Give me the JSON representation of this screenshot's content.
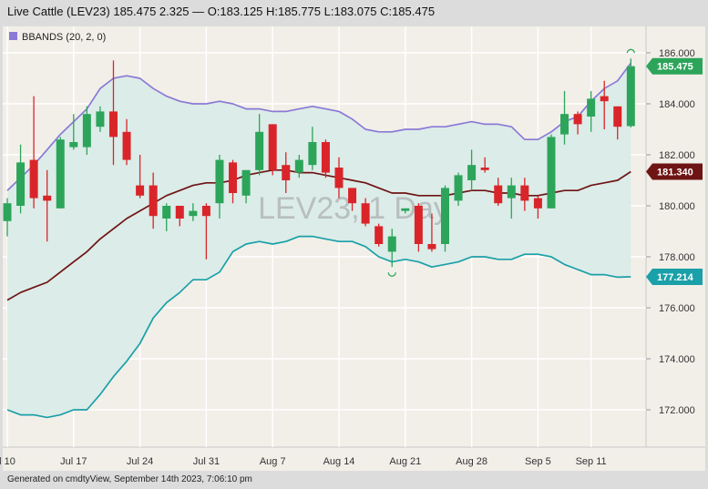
{
  "header": {
    "title": "Live Cattle (LEV23) 185.475 2.325 — O:183.125 H:185.775 L:183.075 C:185.475"
  },
  "footer": {
    "text": "Generated on cmdtyView, September 14th 2023, 7:06:10 pm"
  },
  "colors": {
    "up": "#2ca55a",
    "down": "#d9252a",
    "upper_band": "#8b79d6",
    "middle_band": "#6e1414",
    "lower_band": "#1aa0a8",
    "band_fill": "#dcece8",
    "plot_bg": "#f2efe9",
    "axis_bg": "#f2efe9",
    "grid": "#ffffff"
  },
  "chart_data": {
    "type": "candlestick",
    "symbol_watermark": "LEV23, 1 Day",
    "indicator": {
      "label": "BBANDS (20, 2, 0)",
      "upper_last": "",
      "middle_last": "181.340",
      "lower_last": "177.214"
    },
    "last_price_label": "185.475",
    "y_axis": {
      "ticks": [
        "172.000",
        "174.000",
        "176.000",
        "178.000",
        "180.000",
        "182.000",
        "184.000",
        "186.000"
      ],
      "ylim": [
        171.0,
        186.8
      ],
      "grid": true
    },
    "x_axis": {
      "ticks": [
        {
          "label": "l 10",
          "index": 0
        },
        {
          "label": "Jul 17",
          "index": 5
        },
        {
          "label": "Jul 24",
          "index": 10
        },
        {
          "label": "Jul 31",
          "index": 15
        },
        {
          "label": "Aug 7",
          "index": 20
        },
        {
          "label": "Aug 14",
          "index": 25
        },
        {
          "label": "Aug 21",
          "index": 30
        },
        {
          "label": "Aug 28",
          "index": 35
        },
        {
          "label": "Sep 5",
          "index": 40
        },
        {
          "label": "Sep 11",
          "index": 44
        }
      ]
    },
    "candles": [
      {
        "date": "Jul 10",
        "o": 179.4,
        "h": 180.3,
        "l": 178.8,
        "c": 180.1
      },
      {
        "date": "Jul 11",
        "o": 180.0,
        "h": 182.4,
        "l": 179.7,
        "c": 181.7
      },
      {
        "date": "Jul 12",
        "o": 181.8,
        "h": 184.3,
        "l": 179.9,
        "c": 180.3
      },
      {
        "date": "Jul 13",
        "o": 180.4,
        "h": 181.4,
        "l": 178.6,
        "c": 180.2
      },
      {
        "date": "Jul 14",
        "o": 179.9,
        "h": 182.7,
        "l": 179.9,
        "c": 182.6
      },
      {
        "date": "Jul 17",
        "o": 182.3,
        "h": 183.6,
        "l": 182.2,
        "c": 182.5
      },
      {
        "date": "Jul 18",
        "o": 182.3,
        "h": 183.9,
        "l": 182.0,
        "c": 183.6
      },
      {
        "date": "Jul 19",
        "o": 183.1,
        "h": 183.9,
        "l": 182.9,
        "c": 183.7
      },
      {
        "date": "Jul 20",
        "o": 183.7,
        "h": 185.7,
        "l": 181.6,
        "c": 182.7
      },
      {
        "date": "Jul 21",
        "o": 182.9,
        "h": 183.4,
        "l": 181.6,
        "c": 181.8
      },
      {
        "date": "Jul 24",
        "o": 180.8,
        "h": 182.0,
        "l": 180.3,
        "c": 180.4
      },
      {
        "date": "Jul 25",
        "o": 180.8,
        "h": 181.3,
        "l": 179.1,
        "c": 179.6
      },
      {
        "date": "Jul 26",
        "o": 179.5,
        "h": 180.1,
        "l": 179.0,
        "c": 180.0
      },
      {
        "date": "Jul 27",
        "o": 180.0,
        "h": 180.0,
        "l": 179.2,
        "c": 179.5
      },
      {
        "date": "Jul 28",
        "o": 179.6,
        "h": 180.1,
        "l": 179.4,
        "c": 179.8
      },
      {
        "date": "Jul 31",
        "o": 180.0,
        "h": 180.1,
        "l": 177.9,
        "c": 179.6
      },
      {
        "date": "Aug 1",
        "o": 180.1,
        "h": 182.0,
        "l": 179.5,
        "c": 181.8
      },
      {
        "date": "Aug 2",
        "o": 181.7,
        "h": 181.8,
        "l": 180.1,
        "c": 180.5
      },
      {
        "date": "Aug 3",
        "o": 180.4,
        "h": 181.4,
        "l": 180.1,
        "c": 181.4
      },
      {
        "date": "Aug 4",
        "o": 181.4,
        "h": 183.6,
        "l": 181.2,
        "c": 182.9
      },
      {
        "date": "Aug 7",
        "o": 183.2,
        "h": 183.2,
        "l": 181.2,
        "c": 181.4
      },
      {
        "date": "Aug 8",
        "o": 181.6,
        "h": 182.1,
        "l": 180.5,
        "c": 181.0
      },
      {
        "date": "Aug 9",
        "o": 181.3,
        "h": 182.0,
        "l": 181.1,
        "c": 181.8
      },
      {
        "date": "Aug 10",
        "o": 181.6,
        "h": 183.1,
        "l": 181.4,
        "c": 182.5
      },
      {
        "date": "Aug 11",
        "o": 182.5,
        "h": 182.6,
        "l": 181.1,
        "c": 181.3
      },
      {
        "date": "Aug 14",
        "o": 181.5,
        "h": 181.9,
        "l": 180.3,
        "c": 180.7
      },
      {
        "date": "Aug 15",
        "o": 180.7,
        "h": 180.7,
        "l": 179.8,
        "c": 180.1
      },
      {
        "date": "Aug 16",
        "o": 180.1,
        "h": 180.3,
        "l": 179.2,
        "c": 179.3
      },
      {
        "date": "Aug 17",
        "o": 179.2,
        "h": 179.3,
        "l": 178.4,
        "c": 178.5
      },
      {
        "date": "Aug 18",
        "o": 178.2,
        "h": 179.1,
        "l": 177.6,
        "c": 178.8
      },
      {
        "date": "Aug 21",
        "o": 179.8,
        "h": 179.9,
        "l": 179.7,
        "c": 179.9
      },
      {
        "date": "Aug 22",
        "o": 180.0,
        "h": 180.1,
        "l": 178.2,
        "c": 178.5
      },
      {
        "date": "Aug 23",
        "o": 178.5,
        "h": 179.7,
        "l": 178.2,
        "c": 178.3
      },
      {
        "date": "Aug 24",
        "o": 178.5,
        "h": 180.8,
        "l": 178.2,
        "c": 180.7
      },
      {
        "date": "Aug 25",
        "o": 180.2,
        "h": 181.3,
        "l": 180.0,
        "c": 181.2
      },
      {
        "date": "Aug 28",
        "o": 181.0,
        "h": 182.2,
        "l": 180.6,
        "c": 181.6
      },
      {
        "date": "Aug 29",
        "o": 181.5,
        "h": 181.9,
        "l": 181.3,
        "c": 181.4
      },
      {
        "date": "Aug 30",
        "o": 180.8,
        "h": 181.1,
        "l": 180.0,
        "c": 180.1
      },
      {
        "date": "Aug 31",
        "o": 180.3,
        "h": 181.1,
        "l": 179.5,
        "c": 180.8
      },
      {
        "date": "Sep 1",
        "o": 180.8,
        "h": 181.1,
        "l": 179.8,
        "c": 180.2
      },
      {
        "date": "Sep 5",
        "o": 180.3,
        "h": 180.4,
        "l": 179.5,
        "c": 179.9
      },
      {
        "date": "Sep 6",
        "o": 179.9,
        "h": 182.8,
        "l": 179.9,
        "c": 182.7
      },
      {
        "date": "Sep 7",
        "o": 182.8,
        "h": 184.5,
        "l": 182.4,
        "c": 183.6
      },
      {
        "date": "Sep 8",
        "o": 183.6,
        "h": 183.7,
        "l": 182.8,
        "c": 183.2
      },
      {
        "date": "Sep 11",
        "o": 183.5,
        "h": 184.5,
        "l": 182.9,
        "c": 184.2
      },
      {
        "date": "Sep 12",
        "o": 184.3,
        "h": 184.9,
        "l": 183.0,
        "c": 184.1
      },
      {
        "date": "Sep 13",
        "o": 183.9,
        "h": 183.9,
        "l": 182.6,
        "c": 183.1
      },
      {
        "date": "Sep 14",
        "o": 183.125,
        "h": 185.775,
        "l": 183.075,
        "c": 185.475
      }
    ],
    "bbands": {
      "upper": [
        180.6,
        181.1,
        181.6,
        182.2,
        182.8,
        183.3,
        183.8,
        184.6,
        185.0,
        185.1,
        185.0,
        184.6,
        184.3,
        184.1,
        184.0,
        184.0,
        184.1,
        184.0,
        183.8,
        183.8,
        183.7,
        183.7,
        183.8,
        183.9,
        183.8,
        183.7,
        183.4,
        183.0,
        182.9,
        182.9,
        183.0,
        183.0,
        183.1,
        183.1,
        183.2,
        183.3,
        183.2,
        183.2,
        183.1,
        182.6,
        182.6,
        182.9,
        183.3,
        183.5,
        184.1,
        184.6,
        184.9,
        185.6
      ],
      "middle": [
        176.3,
        176.6,
        176.8,
        177.0,
        177.4,
        177.8,
        178.2,
        178.7,
        179.1,
        179.5,
        179.8,
        180.1,
        180.4,
        180.6,
        180.8,
        180.9,
        180.9,
        181.0,
        181.2,
        181.3,
        181.4,
        181.4,
        181.3,
        181.3,
        181.2,
        181.1,
        181.0,
        180.9,
        180.7,
        180.5,
        180.5,
        180.4,
        180.4,
        180.4,
        180.5,
        180.6,
        180.6,
        180.5,
        180.5,
        180.4,
        180.4,
        180.5,
        180.6,
        180.6,
        180.8,
        180.9,
        181.0,
        181.34
      ],
      "lower": [
        172.0,
        171.8,
        171.8,
        171.7,
        171.8,
        172.0,
        172.0,
        172.6,
        173.3,
        173.9,
        174.6,
        175.6,
        176.2,
        176.6,
        177.1,
        177.1,
        177.4,
        178.2,
        178.5,
        178.6,
        178.5,
        178.6,
        178.8,
        178.8,
        178.7,
        178.6,
        178.6,
        178.4,
        178.0,
        177.8,
        177.9,
        177.8,
        177.6,
        177.7,
        177.8,
        178.0,
        178.0,
        177.9,
        177.9,
        178.1,
        178.1,
        178.0,
        177.7,
        177.5,
        177.3,
        177.3,
        177.2,
        177.214
      ]
    },
    "markers": [
      {
        "type": "swing-high",
        "index": 47
      },
      {
        "type": "swing-low",
        "index": 29
      }
    ]
  }
}
